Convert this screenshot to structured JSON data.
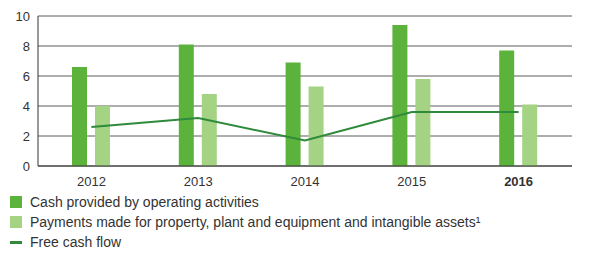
{
  "chart_data": {
    "type": "bar",
    "categories": [
      "2012",
      "2013",
      "2014",
      "2015",
      "2016"
    ],
    "series": [
      {
        "name": "Cash provided by operating activities",
        "type": "bar",
        "color": "#5cb33c",
        "values": [
          6.6,
          8.1,
          6.9,
          9.4,
          7.7
        ]
      },
      {
        "name": "Payments made for property, plant and equipment and intangible assets¹",
        "type": "bar",
        "color": "#a3d383",
        "values": [
          4.0,
          4.8,
          5.3,
          5.8,
          4.1
        ]
      },
      {
        "name": "Free cash flow",
        "type": "line",
        "color": "#2f8a3c",
        "values": [
          2.6,
          3.2,
          1.7,
          3.6,
          3.6
        ]
      }
    ],
    "ylim": [
      0,
      10
    ],
    "yticks": [
      0,
      2,
      4,
      6,
      8,
      10
    ],
    "grid": true
  }
}
